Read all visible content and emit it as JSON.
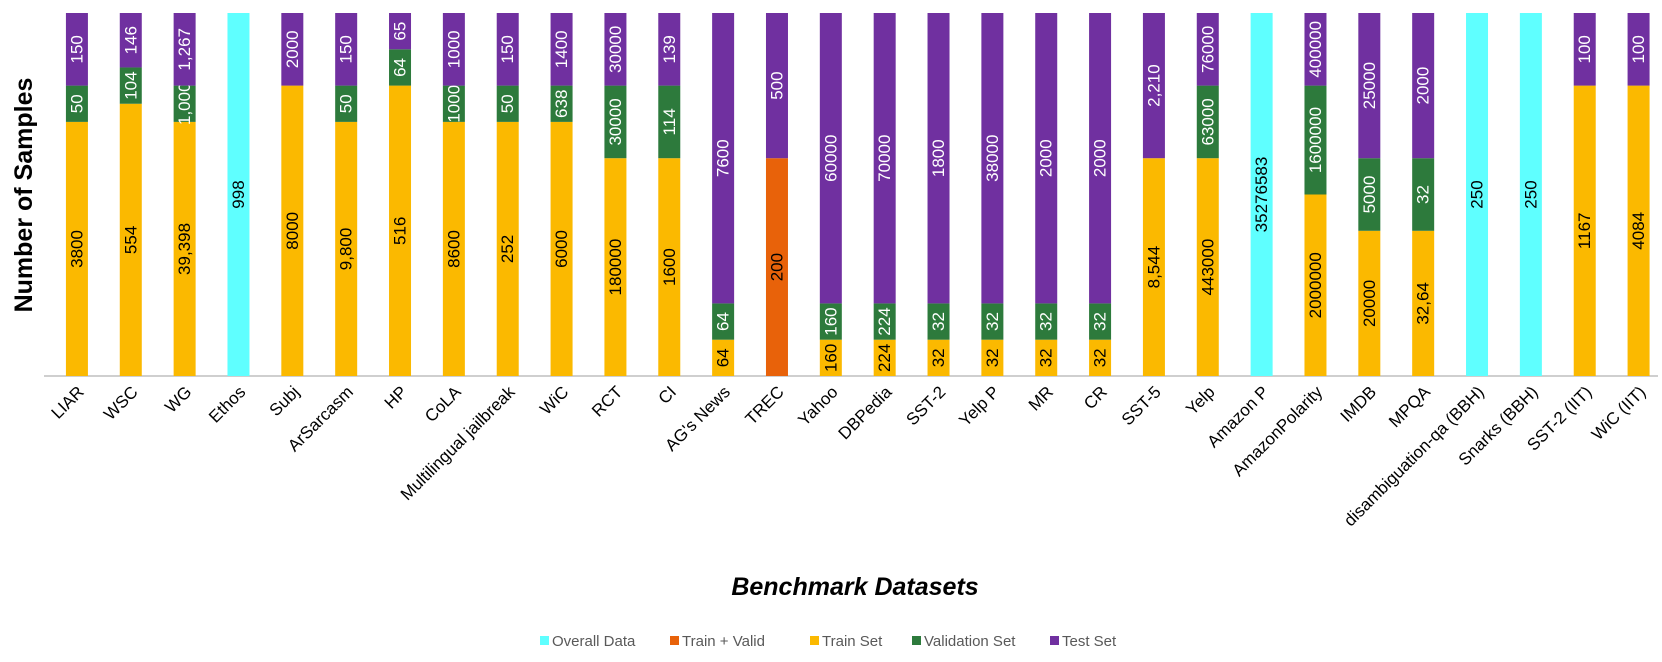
{
  "chart_data": {
    "type": "bar",
    "stacked": true,
    "title": "",
    "xlabel": "Benchmark Datasets",
    "ylabel": "Number of Samples",
    "grid": false,
    "legend_position": "bottom",
    "series": [
      {
        "key": "overall",
        "name": "Overall Data",
        "color": "#5FFFFF"
      },
      {
        "key": "trainvalid",
        "name": "Train + Valid",
        "color": "#E8620A"
      },
      {
        "key": "train",
        "name": "Train Set",
        "color": "#FBB900"
      },
      {
        "key": "valid",
        "name": "Validation Set",
        "color": "#2D7A3C"
      },
      {
        "key": "test",
        "name": "Test Set",
        "color": "#7030A0"
      }
    ],
    "categories": [
      {
        "name": "LIAR",
        "segments": [
          {
            "series": "train",
            "label": "3800"
          },
          {
            "series": "valid",
            "label": "50"
          },
          {
            "series": "test",
            "label": "150"
          }
        ]
      },
      {
        "name": "WSC",
        "segments": [
          {
            "series": "train",
            "label": "554"
          },
          {
            "series": "valid",
            "label": "104"
          },
          {
            "series": "test",
            "label": "146"
          }
        ]
      },
      {
        "name": "WG",
        "segments": [
          {
            "series": "train",
            "label": "39,398"
          },
          {
            "series": "valid",
            "label": "1,000"
          },
          {
            "series": "test",
            "label": "1,267"
          }
        ]
      },
      {
        "name": "Ethos",
        "segments": [
          {
            "series": "overall",
            "label": "998"
          }
        ]
      },
      {
        "name": "Subj",
        "segments": [
          {
            "series": "train",
            "label": "8000"
          },
          {
            "series": "test",
            "label": "2000"
          }
        ]
      },
      {
        "name": "ArSarcasm",
        "segments": [
          {
            "series": "train",
            "label": "9,800"
          },
          {
            "series": "valid",
            "label": "50"
          },
          {
            "series": "test",
            "label": "150"
          }
        ]
      },
      {
        "name": "HP",
        "segments": [
          {
            "series": "train",
            "label": "516"
          },
          {
            "series": "valid",
            "label": "64"
          },
          {
            "series": "test",
            "label": "65"
          }
        ]
      },
      {
        "name": "CoLA",
        "segments": [
          {
            "series": "train",
            "label": "8600"
          },
          {
            "series": "valid",
            "label": "1000"
          },
          {
            "series": "test",
            "label": "1000"
          }
        ]
      },
      {
        "name": "Multilingual jailbreak",
        "segments": [
          {
            "series": "train",
            "label": "252"
          },
          {
            "series": "valid",
            "label": "50"
          },
          {
            "series": "test",
            "label": "150"
          }
        ]
      },
      {
        "name": "WiC",
        "segments": [
          {
            "series": "train",
            "label": "6000"
          },
          {
            "series": "valid",
            "label": "638"
          },
          {
            "series": "test",
            "label": "1400"
          }
        ]
      },
      {
        "name": "RCT",
        "segments": [
          {
            "series": "train",
            "label": "180000"
          },
          {
            "series": "valid",
            "label": "30000"
          },
          {
            "series": "test",
            "label": "30000"
          }
        ]
      },
      {
        "name": "CI",
        "segments": [
          {
            "series": "train",
            "label": "1600"
          },
          {
            "series": "valid",
            "label": "114"
          },
          {
            "series": "test",
            "label": "139"
          }
        ]
      },
      {
        "name": "AG's News",
        "segments": [
          {
            "series": "train",
            "label": "64"
          },
          {
            "series": "valid",
            "label": "64"
          },
          {
            "series": "test",
            "label": "7600"
          }
        ]
      },
      {
        "name": "TREC",
        "segments": [
          {
            "series": "trainvalid",
            "label": "200"
          },
          {
            "series": "test",
            "label": "500"
          }
        ]
      },
      {
        "name": "Yahoo",
        "segments": [
          {
            "series": "train",
            "label": "160"
          },
          {
            "series": "valid",
            "label": "160"
          },
          {
            "series": "test",
            "label": "60000"
          }
        ]
      },
      {
        "name": "DBPedia",
        "segments": [
          {
            "series": "train",
            "label": "224"
          },
          {
            "series": "valid",
            "label": "224"
          },
          {
            "series": "test",
            "label": "70000"
          }
        ]
      },
      {
        "name": "SST-2",
        "segments": [
          {
            "series": "train",
            "label": "32"
          },
          {
            "series": "valid",
            "label": "32"
          },
          {
            "series": "test",
            "label": "1800"
          }
        ]
      },
      {
        "name": "Yelp P",
        "segments": [
          {
            "series": "train",
            "label": "32"
          },
          {
            "series": "valid",
            "label": "32"
          },
          {
            "series": "test",
            "label": "38000"
          }
        ]
      },
      {
        "name": "MR",
        "segments": [
          {
            "series": "train",
            "label": "32"
          },
          {
            "series": "valid",
            "label": "32"
          },
          {
            "series": "test",
            "label": "2000"
          }
        ]
      },
      {
        "name": "CR",
        "segments": [
          {
            "series": "train",
            "label": "32"
          },
          {
            "series": "valid",
            "label": "32"
          },
          {
            "series": "test",
            "label": "2000"
          }
        ]
      },
      {
        "name": "SST-5",
        "segments": [
          {
            "series": "train",
            "label": "8,544"
          },
          {
            "series": "test",
            "label": "2,210"
          }
        ]
      },
      {
        "name": "Yelp",
        "segments": [
          {
            "series": "train",
            "label": "443000"
          },
          {
            "series": "valid",
            "label": "63000"
          },
          {
            "series": "test",
            "label": "76000"
          }
        ]
      },
      {
        "name": "Amazon P",
        "segments": [
          {
            "series": "overall",
            "label": "35276583"
          }
        ]
      },
      {
        "name": "AmazonPolarity",
        "segments": [
          {
            "series": "train",
            "label": "2000000"
          },
          {
            "series": "valid",
            "label": "1600000"
          },
          {
            "series": "test",
            "label": "400000"
          }
        ]
      },
      {
        "name": "IMDB",
        "segments": [
          {
            "series": "train",
            "label": "20000"
          },
          {
            "series": "valid",
            "label": "5000"
          },
          {
            "series": "test",
            "label": "25000"
          }
        ]
      },
      {
        "name": "MPQA",
        "segments": [
          {
            "series": "train",
            "label": "32,64"
          },
          {
            "series": "valid",
            "label": "32"
          },
          {
            "series": "test",
            "label": "2000"
          }
        ]
      },
      {
        "name": "disambiguation-qa (BBH)",
        "segments": [
          {
            "series": "overall",
            "label": "250"
          }
        ]
      },
      {
        "name": "Snarks (BBH)",
        "segments": [
          {
            "series": "overall",
            "label": "250"
          }
        ]
      },
      {
        "name": "SST-2 (IIT)",
        "segments": [
          {
            "series": "train",
            "label": "1167"
          },
          {
            "series": "test",
            "label": "100"
          }
        ]
      },
      {
        "name": "WiC (IIT)",
        "segments": [
          {
            "series": "train",
            "label": "4084"
          },
          {
            "series": "test",
            "label": "100"
          }
        ]
      }
    ]
  }
}
